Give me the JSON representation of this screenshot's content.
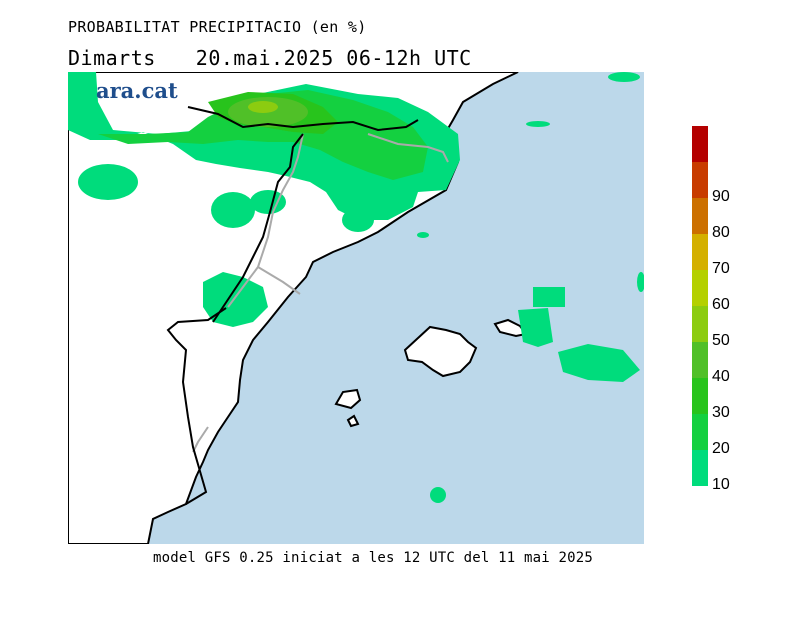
{
  "header": {
    "title": "PROBABILITAT PRECIPITACIO (en %)",
    "day": "Dimarts",
    "date_range": "20.mai.2025 06-12h UTC"
  },
  "logo": "ara.cat",
  "footer": "model GFS 0.25 iniciat a les 12 UTC del 11 mai 2025",
  "legend": {
    "levels": [
      {
        "label": "10",
        "color": "#00dc7c"
      },
      {
        "label": "20",
        "color": "#14d040"
      },
      {
        "label": "30",
        "color": "#28c41c"
      },
      {
        "label": "40",
        "color": "#50c028"
      },
      {
        "label": "50",
        "color": "#8ccc10"
      },
      {
        "label": "60",
        "color": "#b4d000"
      },
      {
        "label": "70",
        "color": "#d4b000"
      },
      {
        "label": "80",
        "color": "#cc7000"
      },
      {
        "label": "90",
        "color": "#c83c00"
      },
      {
        "label": "",
        "color": "#b40000"
      }
    ]
  },
  "colors": {
    "sea": "#bcd8ea",
    "land": "#ffffff",
    "coast": "#000000",
    "border": "#aaaaaa"
  }
}
